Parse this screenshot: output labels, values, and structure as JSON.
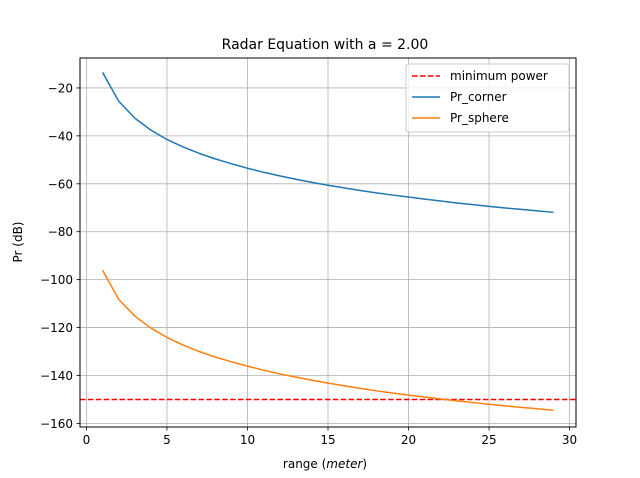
{
  "chart_data": {
    "type": "line",
    "title": "Radar Equation with a = 2.00",
    "xlabel_prefix": "range (",
    "xlabel_italic": "meter",
    "xlabel_suffix": ")",
    "ylabel": "Pr (dB)",
    "xlim": [
      -0.4,
      30.4
    ],
    "ylim": [
      -161.5,
      -7.5
    ],
    "xticks": [
      0,
      5,
      10,
      15,
      20,
      25,
      30
    ],
    "xtick_labels": [
      "0",
      "5",
      "10",
      "15",
      "20",
      "25",
      "30"
    ],
    "yticks": [
      -160,
      -140,
      -120,
      -100,
      -80,
      -60,
      -40,
      -20
    ],
    "ytick_labels": [
      "−160",
      "−140",
      "−120",
      "−100",
      "−80",
      "−60",
      "−40",
      "−20"
    ],
    "grid": true,
    "legend_position": "top-right",
    "hlines": [
      {
        "name": "minimum power",
        "y": -150,
        "color": "#ff0000",
        "style": "dashed"
      }
    ],
    "series": [
      {
        "name": "Pr_corner",
        "color": "#1f77b4",
        "x": [
          1,
          2,
          3,
          4,
          5,
          6,
          7,
          8,
          9,
          10,
          11,
          12,
          13,
          14,
          15,
          16,
          17,
          18,
          19,
          20,
          21,
          22,
          23,
          24,
          25,
          26,
          27,
          28,
          29
        ],
        "y": [
          -13.5,
          -25.5,
          -32.6,
          -37.6,
          -41.5,
          -44.6,
          -47.3,
          -49.6,
          -51.6,
          -53.5,
          -55.2,
          -56.7,
          -58.1,
          -59.4,
          -60.6,
          -61.7,
          -62.8,
          -63.8,
          -64.7,
          -65.5,
          -66.4,
          -67.2,
          -68.0,
          -68.7,
          -69.4,
          -70.1,
          -70.7,
          -71.3,
          -71.9
        ]
      },
      {
        "name": "Pr_sphere",
        "color": "#ff7f0e",
        "x": [
          1,
          2,
          3,
          4,
          5,
          6,
          7,
          8,
          9,
          10,
          11,
          12,
          13,
          14,
          15,
          16,
          17,
          18,
          19,
          20,
          21,
          22,
          23,
          24,
          25,
          26,
          27,
          28,
          29
        ],
        "y": [
          -96.1,
          -108.2,
          -115.2,
          -120.2,
          -124.1,
          -127.3,
          -130.0,
          -132.3,
          -134.3,
          -136.1,
          -137.8,
          -139.3,
          -140.7,
          -142.0,
          -143.2,
          -144.3,
          -145.4,
          -146.4,
          -147.3,
          -148.2,
          -149.0,
          -149.8,
          -150.6,
          -151.3,
          -152.0,
          -152.7,
          -153.3,
          -153.9,
          -154.5
        ]
      }
    ]
  }
}
